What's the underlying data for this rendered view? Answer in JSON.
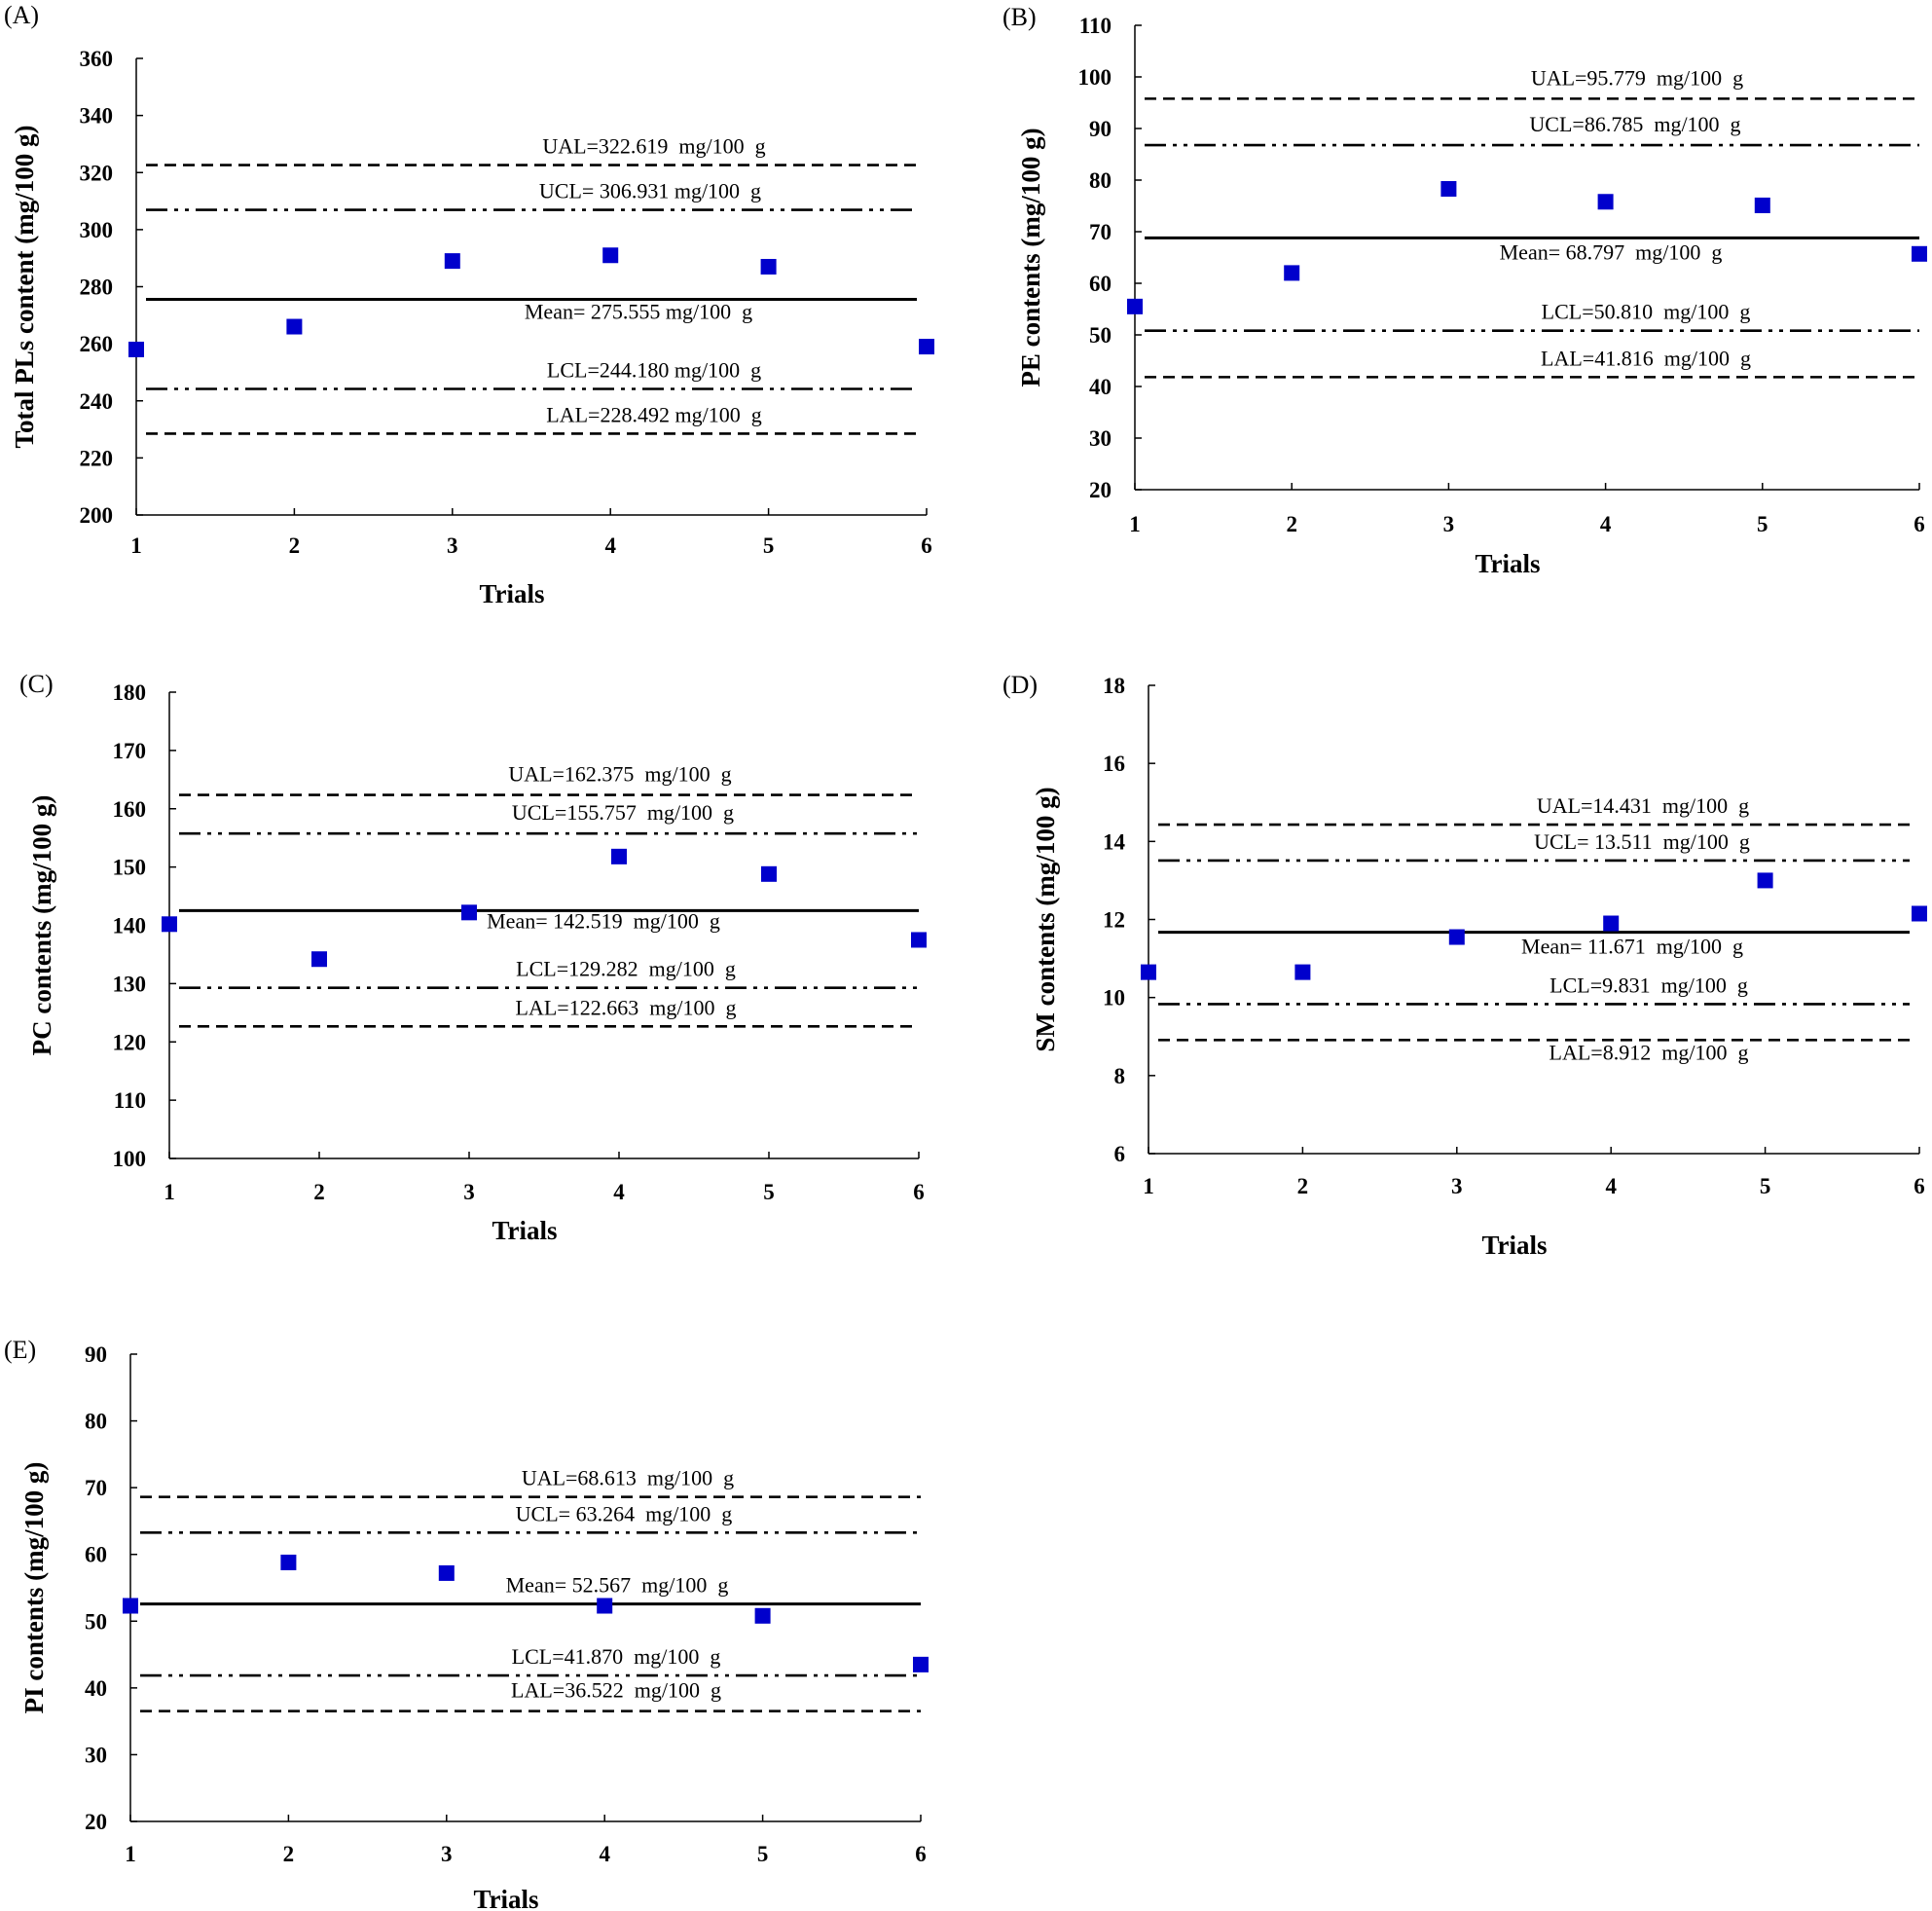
{
  "chart_data": [
    {
      "id": "A",
      "type": "scatter",
      "panel_label": "(A)",
      "xlabel": "Trials",
      "ylabel": "Total PLs content (mg/100 g)",
      "x": [
        1,
        2,
        3,
        4,
        5,
        6
      ],
      "values": [
        258,
        266,
        289,
        291,
        287,
        259
      ],
      "ylim": [
        200,
        360
      ],
      "yticks": [
        200,
        220,
        240,
        260,
        280,
        300,
        320,
        340,
        360
      ],
      "series_color": "#0000cc",
      "control_lines": [
        {
          "name": "UAL",
          "value": 322.619,
          "style": "dashed",
          "label": "UAL=322.619  mg/100  g"
        },
        {
          "name": "UCL",
          "value": 306.931,
          "style": "dashdotdot",
          "label": "UCL= 306.931 mg/100  g"
        },
        {
          "name": "Mean",
          "value": 275.555,
          "style": "solid",
          "label": "Mean= 275.555 mg/100  g"
        },
        {
          "name": "LCL",
          "value": 244.18,
          "style": "dashdotdot",
          "label": "LCL=244.180 mg/100  g"
        },
        {
          "name": "LAL",
          "value": 228.492,
          "style": "dashed",
          "label": "LAL=228.492 mg/100  g"
        }
      ]
    },
    {
      "id": "B",
      "type": "scatter",
      "panel_label": "(B)",
      "xlabel": "Trials",
      "ylabel": "PE contents (mg/100 g)",
      "x": [
        1,
        2,
        3,
        4,
        5,
        6
      ],
      "values": [
        55.5,
        62,
        78.3,
        75.8,
        75.1,
        65.7
      ],
      "ylim": [
        20,
        110
      ],
      "yticks": [
        20,
        30,
        40,
        50,
        60,
        70,
        80,
        90,
        100,
        110
      ],
      "series_color": "#0000cc",
      "control_lines": [
        {
          "name": "UAL",
          "value": 95.779,
          "style": "dashed",
          "label": "UAL=95.779  mg/100  g"
        },
        {
          "name": "UCL",
          "value": 86.785,
          "style": "dashdotdot",
          "label": "UCL=86.785  mg/100  g"
        },
        {
          "name": "Mean",
          "value": 68.797,
          "style": "solid",
          "label": "Mean= 68.797  mg/100  g"
        },
        {
          "name": "LCL",
          "value": 50.81,
          "style": "dashdotdot",
          "label": "LCL=50.810  mg/100  g"
        },
        {
          "name": "LAL",
          "value": 41.816,
          "style": "dashed",
          "label": "LAL=41.816  mg/100  g"
        }
      ]
    },
    {
      "id": "C",
      "type": "scatter",
      "panel_label": "(C)",
      "xlabel": "Trials",
      "ylabel": "PC contents (mg/100 g)",
      "x": [
        1,
        2,
        3,
        4,
        5,
        6
      ],
      "values": [
        140.2,
        134.2,
        142.2,
        151.8,
        148.8,
        137.5
      ],
      "ylim": [
        100,
        180
      ],
      "yticks": [
        100,
        110,
        120,
        130,
        140,
        150,
        160,
        170,
        180
      ],
      "series_color": "#0000cc",
      "control_lines": [
        {
          "name": "UAL",
          "value": 162.375,
          "style": "dashed",
          "label": "UAL=162.375  mg/100  g"
        },
        {
          "name": "UCL",
          "value": 155.757,
          "style": "dashdotdot",
          "label": "UCL=155.757  mg/100  g"
        },
        {
          "name": "Mean",
          "value": 142.519,
          "style": "solid",
          "label": "Mean= 142.519  mg/100  g"
        },
        {
          "name": "LCL",
          "value": 129.282,
          "style": "dashdotdot",
          "label": "LCL=129.282  mg/100  g"
        },
        {
          "name": "LAL",
          "value": 122.663,
          "style": "dashed",
          "label": "LAL=122.663  mg/100  g"
        }
      ]
    },
    {
      "id": "D",
      "type": "scatter",
      "panel_label": "(D)",
      "xlabel": "Trials",
      "ylabel": "SM contents (mg/100 g)",
      "x": [
        1,
        2,
        3,
        4,
        5,
        6
      ],
      "values": [
        10.65,
        10.65,
        11.55,
        11.9,
        13.0,
        12.15
      ],
      "ylim": [
        6,
        18
      ],
      "yticks": [
        6,
        8,
        10,
        12,
        14,
        16,
        18
      ],
      "series_color": "#0000cc",
      "control_lines": [
        {
          "name": "UAL",
          "value": 14.431,
          "style": "dashed",
          "label": "UAL=14.431  mg/100  g"
        },
        {
          "name": "UCL",
          "value": 13.511,
          "style": "dashdotdot",
          "label": "UCL= 13.511  mg/100  g"
        },
        {
          "name": "Mean",
          "value": 11.671,
          "style": "solid",
          "label": "Mean= 11.671  mg/100  g"
        },
        {
          "name": "LCL",
          "value": 9.831,
          "style": "dashdotdot",
          "label": "LCL=9.831  mg/100  g"
        },
        {
          "name": "LAL",
          "value": 8.912,
          "style": "dashed",
          "label": "LAL=8.912  mg/100  g"
        }
      ]
    },
    {
      "id": "E",
      "type": "scatter",
      "panel_label": "(E)",
      "xlabel": "Trials",
      "ylabel": "PI contents (mg/100 g)",
      "x": [
        1,
        2,
        3,
        4,
        5,
        6
      ],
      "values": [
        52.3,
        58.8,
        57.2,
        52.3,
        50.8,
        43.5
      ],
      "ylim": [
        20,
        90
      ],
      "yticks": [
        20,
        30,
        40,
        50,
        60,
        70,
        80,
        90
      ],
      "series_color": "#0000cc",
      "control_lines": [
        {
          "name": "UAL",
          "value": 68.613,
          "style": "dashed",
          "label": "UAL=68.613  mg/100  g"
        },
        {
          "name": "UCL",
          "value": 63.264,
          "style": "dashdotdot",
          "label": "UCL= 63.264  mg/100  g"
        },
        {
          "name": "Mean",
          "value": 52.567,
          "style": "solid",
          "label": "Mean= 52.567  mg/100  g"
        },
        {
          "name": "LCL",
          "value": 41.87,
          "style": "dashdotdot",
          "label": "LCL=41.870  mg/100  g"
        },
        {
          "name": "LAL",
          "value": 36.522,
          "style": "dashed",
          "label": "LAL=36.522  mg/100  g"
        }
      ]
    }
  ]
}
